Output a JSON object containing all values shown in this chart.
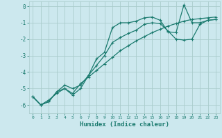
{
  "xlabel": "Humidex (Indice chaleur)",
  "bg_color": "#cce8ee",
  "grid_color": "#aacccc",
  "line_color": "#1a7a6e",
  "xlim": [
    -0.5,
    23.5
  ],
  "ylim": [
    -6.5,
    0.3
  ],
  "xticks": [
    0,
    1,
    2,
    3,
    4,
    5,
    6,
    7,
    8,
    9,
    10,
    11,
    12,
    13,
    14,
    15,
    16,
    17,
    18,
    19,
    20,
    21,
    22,
    23
  ],
  "yticks": [
    0,
    -1,
    -2,
    -3,
    -4,
    -5,
    -6
  ],
  "series": [
    {
      "x": [
        0,
        1,
        2,
        3,
        4,
        5,
        6,
        7,
        8,
        9,
        10,
        11,
        12,
        13,
        14,
        15,
        16,
        17,
        18,
        19,
        20,
        21,
        22,
        23
      ],
      "y": [
        -5.5,
        -6.0,
        -5.8,
        -5.2,
        -4.8,
        -5.0,
        -4.8,
        -4.2,
        -3.2,
        -2.8,
        -1.3,
        -1.0,
        -1.0,
        -0.9,
        -0.7,
        -0.65,
        -0.85,
        -1.55,
        -1.6,
        0.1,
        -1.0,
        -1.0,
        -0.85,
        -0.8
      ]
    },
    {
      "x": [
        0,
        1,
        2,
        3,
        4,
        5,
        6,
        7,
        8,
        9,
        10,
        11,
        12,
        13,
        14,
        15,
        16,
        17,
        18,
        19,
        20,
        21,
        22,
        23
      ],
      "y": [
        -5.5,
        -6.0,
        -5.8,
        -5.2,
        -5.0,
        -5.4,
        -5.0,
        -4.2,
        -3.6,
        -3.0,
        -2.2,
        -1.9,
        -1.65,
        -1.45,
        -1.1,
        -1.0,
        -1.05,
        -1.5,
        -2.0,
        -2.05,
        -2.0,
        -1.1,
        -0.85,
        -0.8
      ]
    },
    {
      "x": [
        0,
        1,
        2,
        3,
        4,
        5,
        6,
        7,
        8,
        9,
        10,
        11,
        12,
        13,
        14,
        15,
        16,
        17,
        18,
        19,
        20,
        21,
        22,
        23
      ],
      "y": [
        -5.5,
        -6.0,
        -5.7,
        -5.3,
        -5.0,
        -5.3,
        -4.7,
        -4.3,
        -3.9,
        -3.5,
        -3.1,
        -2.7,
        -2.4,
        -2.1,
        -1.85,
        -1.6,
        -1.4,
        -1.2,
        -1.05,
        -0.9,
        -0.8,
        -0.75,
        -0.7,
        -0.65
      ]
    }
  ]
}
